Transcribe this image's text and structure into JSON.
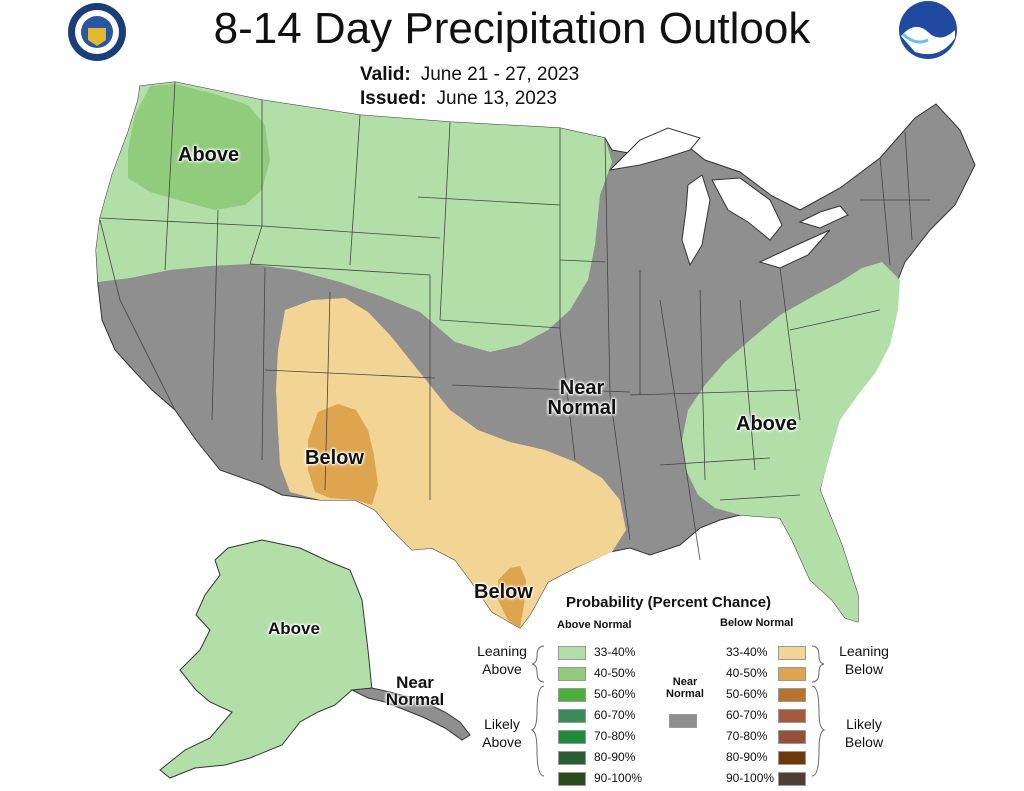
{
  "header": {
    "title": "8-14 Day Precipitation Outlook",
    "valid_label": "Valid:",
    "valid_value": "June 21 - 27, 2023",
    "issued_label": "Issued:",
    "issued_value": "June 13, 2023"
  },
  "logos": {
    "left": "doc-seal-icon",
    "right": "noaa-logo-icon"
  },
  "colors": {
    "ocean": "#ffffff",
    "near_normal": "#8f8f8f",
    "above_33_40": "#b2dfa8",
    "above_40_50": "#90cc7c",
    "below_33_40": "#f2d494",
    "below_40_50": "#dea54e",
    "state_lines": "#333333",
    "great_lakes": "#ffffff"
  },
  "map_labels": {
    "nw_above": "Above",
    "se_above": "Above",
    "near_normal_line1": "Near",
    "near_normal_line2": "Normal",
    "sw_below": "Below",
    "tx_below": "Below",
    "ak_above": "Above",
    "ak_near1": "Near",
    "ak_near2": "Normal"
  },
  "legend": {
    "title": "Probability (Percent Chance)",
    "above_header": "Above Normal",
    "below_header": "Below Normal",
    "near_header1": "Near",
    "near_header2": "Normal",
    "leaning_above1": "Leaning",
    "leaning_above2": "Above",
    "likely_above1": "Likely",
    "likely_above2": "Above",
    "leaning_below1": "Leaning",
    "leaning_below2": "Below",
    "likely_below1": "Likely",
    "likely_below2": "Below",
    "above": [
      {
        "label": "33-40%",
        "color": "#b2dfa8"
      },
      {
        "label": "40-50%",
        "color": "#90cc7c"
      },
      {
        "label": "50-60%",
        "color": "#4aae3a"
      },
      {
        "label": "60-70%",
        "color": "#3b8a58"
      },
      {
        "label": "70-80%",
        "color": "#1f8a3c"
      },
      {
        "label": "80-90%",
        "color": "#285d35"
      },
      {
        "label": "90-100%",
        "color": "#2a4a1c"
      }
    ],
    "below": [
      {
        "label": "33-40%",
        "color": "#f2d494"
      },
      {
        "label": "40-50%",
        "color": "#dea54e"
      },
      {
        "label": "50-60%",
        "color": "#b8732e"
      },
      {
        "label": "60-70%",
        "color": "#a55a3e"
      },
      {
        "label": "70-80%",
        "color": "#94503a"
      },
      {
        "label": "80-90%",
        "color": "#6e3a0c"
      },
      {
        "label": "90-100%",
        "color": "#4f3e35"
      }
    ],
    "near_color": "#8f8f8f"
  }
}
